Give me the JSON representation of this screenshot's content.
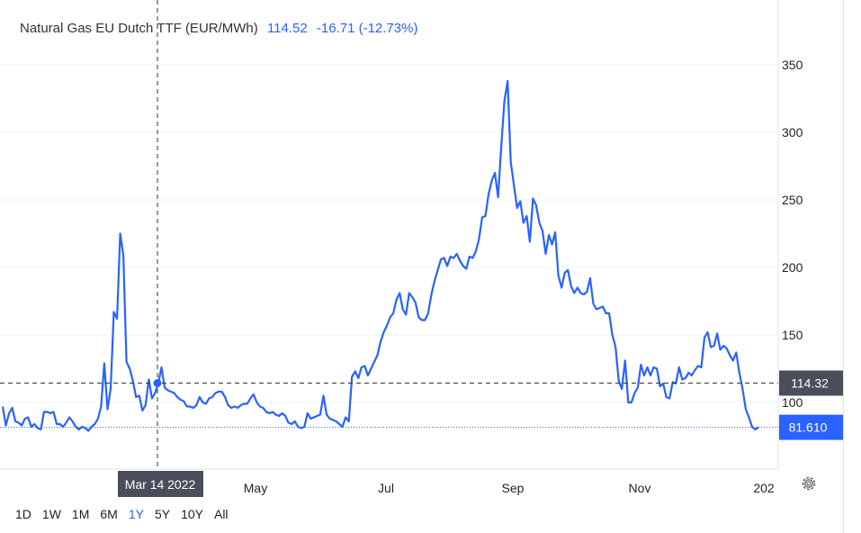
{
  "header": {
    "title": "Natural Gas EU Dutch TTF (EUR/MWh)",
    "price": "114.52",
    "change": "-16.71 (-12.73%)"
  },
  "crosshair": {
    "date_label": "Mar 14 2022",
    "price_label": "114.32"
  },
  "last_price_label": "81.610",
  "range_buttons": [
    "1D",
    "1W",
    "1M",
    "6M",
    "1Y",
    "5Y",
    "10Y",
    "All"
  ],
  "active_range": "1Y",
  "colors": {
    "line": "#2962ff",
    "label_bg_dark": "#4a4e5a",
    "label_bg_blue": "#2962ff"
  },
  "chart_data": {
    "type": "line",
    "title": "Natural Gas EU Dutch TTF (EUR/MWh)",
    "x_tick_labels": [
      "Mar 14 2022",
      "May",
      "Jul",
      "Sep",
      "Nov",
      "202"
    ],
    "y_tick_labels": [
      "350",
      "300",
      "250",
      "200",
      "150",
      "100"
    ],
    "ylim": [
      50,
      375
    ],
    "grid": true,
    "series": [
      {
        "values": [
          97,
          83,
          92,
          96,
          86,
          85,
          83,
          88,
          89,
          82,
          84,
          81,
          80,
          93,
          93,
          92,
          93,
          84,
          84,
          82,
          85,
          89,
          86,
          82,
          80,
          82,
          81,
          79,
          82,
          84,
          88,
          97,
          129,
          95,
          110,
          167,
          162,
          225,
          209,
          130,
          125,
          116,
          104,
          105,
          94,
          98,
          117,
          103,
          107,
          114,
          126,
          111,
          109,
          108,
          107,
          104,
          102,
          101,
          97,
          97,
          96,
          98,
          104,
          100,
          99,
          103,
          104,
          107,
          108,
          108,
          104,
          98,
          96,
          97,
          96,
          98,
          99,
          99,
          103,
          106,
          100,
          97,
          96,
          93,
          92,
          93,
          91,
          90,
          92,
          90,
          85,
          84,
          86,
          82,
          81,
          82,
          92,
          88,
          89,
          90,
          91,
          105,
          91,
          88,
          87,
          86,
          84,
          82,
          89,
          86,
          119,
          123,
          118,
          126,
          127,
          120,
          125,
          130,
          135,
          145,
          152,
          157,
          163,
          166,
          176,
          181,
          169,
          165,
          181,
          178,
          174,
          163,
          161,
          161,
          166,
          180,
          190,
          198,
          206,
          207,
          201,
          208,
          207,
          210,
          205,
          201,
          199,
          208,
          207,
          212,
          221,
          237,
          238,
          254,
          264,
          270,
          252,
          289,
          323,
          338,
          278,
          261,
          244,
          249,
          233,
          238,
          219,
          251,
          246,
          233,
          227,
          210,
          224,
          217,
          226,
          194,
          185,
          196,
          198,
          186,
          181,
          185,
          181,
          180,
          182,
          192,
          173,
          169,
          170,
          171,
          166,
          166,
          150,
          141,
          116,
          110,
          131,
          100,
          100,
          107,
          111,
          128,
          120,
          126,
          120,
          126,
          125,
          112,
          114,
          104,
          103,
          115,
          114,
          126,
          117,
          118,
          122,
          120,
          124,
          127,
          126,
          148,
          152,
          141,
          142,
          151,
          139,
          142,
          140,
          135,
          131,
          137,
          122,
          110,
          95,
          89,
          82,
          80,
          81.61
        ]
      }
    ]
  }
}
